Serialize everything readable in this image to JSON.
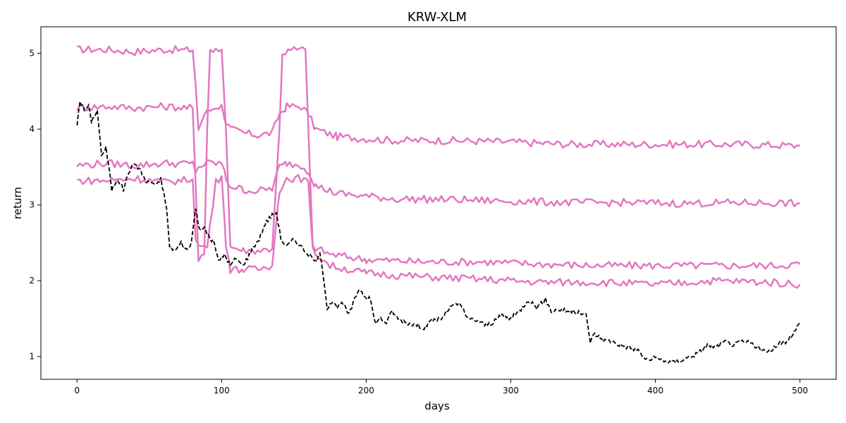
{
  "chart_data": {
    "type": "line",
    "title": "KRW-XLM",
    "xlabel": "days",
    "ylabel": "return",
    "xlim": [
      -25,
      525
    ],
    "ylim": [
      0.7,
      5.35
    ],
    "xticks": [
      0,
      100,
      200,
      300,
      400,
      500
    ],
    "yticks": [
      1,
      2,
      3,
      4,
      5
    ],
    "grid": false,
    "legend": "none",
    "colors": {
      "price": "#000000",
      "bands": "#e377c2"
    },
    "price_series": {
      "style": "dashed",
      "color": "#000000",
      "points": [
        [
          0,
          4.05
        ],
        [
          2,
          4.38
        ],
        [
          5,
          4.25
        ],
        [
          8,
          4.3
        ],
        [
          10,
          4.1
        ],
        [
          14,
          4.25
        ],
        [
          17,
          3.65
        ],
        [
          20,
          3.75
        ],
        [
          22,
          3.5
        ],
        [
          24,
          3.2
        ],
        [
          28,
          3.35
        ],
        [
          32,
          3.2
        ],
        [
          36,
          3.45
        ],
        [
          40,
          3.55
        ],
        [
          44,
          3.45
        ],
        [
          48,
          3.3
        ],
        [
          52,
          3.3
        ],
        [
          55,
          3.25
        ],
        [
          58,
          3.35
        ],
        [
          62,
          2.95
        ],
        [
          64,
          2.45
        ],
        [
          68,
          2.4
        ],
        [
          72,
          2.5
        ],
        [
          76,
          2.4
        ],
        [
          79,
          2.5
        ],
        [
          82,
          2.95
        ],
        [
          85,
          2.65
        ],
        [
          88,
          2.7
        ],
        [
          92,
          2.55
        ],
        [
          95,
          2.5
        ],
        [
          98,
          2.25
        ],
        [
          102,
          2.35
        ],
        [
          106,
          2.2
        ],
        [
          110,
          2.3
        ],
        [
          114,
          2.2
        ],
        [
          118,
          2.3
        ],
        [
          122,
          2.45
        ],
        [
          126,
          2.55
        ],
        [
          130,
          2.75
        ],
        [
          134,
          2.85
        ],
        [
          138,
          2.9
        ],
        [
          141,
          2.55
        ],
        [
          145,
          2.45
        ],
        [
          150,
          2.55
        ],
        [
          155,
          2.45
        ],
        [
          160,
          2.35
        ],
        [
          165,
          2.25
        ],
        [
          168,
          2.35
        ],
        [
          170,
          2.1
        ],
        [
          173,
          1.65
        ],
        [
          177,
          1.75
        ],
        [
          180,
          1.65
        ],
        [
          184,
          1.7
        ],
        [
          188,
          1.55
        ],
        [
          192,
          1.75
        ],
        [
          195,
          1.9
        ],
        [
          199,
          1.8
        ],
        [
          203,
          1.75
        ],
        [
          206,
          1.45
        ],
        [
          210,
          1.5
        ],
        [
          214,
          1.45
        ],
        [
          218,
          1.6
        ],
        [
          222,
          1.5
        ],
        [
          228,
          1.45
        ],
        [
          234,
          1.42
        ],
        [
          240,
          1.38
        ],
        [
          246,
          1.48
        ],
        [
          252,
          1.5
        ],
        [
          258,
          1.65
        ],
        [
          265,
          1.7
        ],
        [
          270,
          1.5
        ],
        [
          276,
          1.48
        ],
        [
          282,
          1.42
        ],
        [
          288,
          1.45
        ],
        [
          294,
          1.55
        ],
        [
          300,
          1.5
        ],
        [
          306,
          1.6
        ],
        [
          312,
          1.75
        ],
        [
          318,
          1.65
        ],
        [
          324,
          1.75
        ],
        [
          328,
          1.6
        ],
        [
          334,
          1.62
        ],
        [
          340,
          1.6
        ],
        [
          346,
          1.58
        ],
        [
          352,
          1.55
        ],
        [
          355,
          1.2
        ],
        [
          358,
          1.3
        ],
        [
          364,
          1.22
        ],
        [
          370,
          1.2
        ],
        [
          376,
          1.15
        ],
        [
          382,
          1.12
        ],
        [
          388,
          1.08
        ],
        [
          394,
          0.95
        ],
        [
          400,
          0.98
        ],
        [
          406,
          0.95
        ],
        [
          412,
          0.92
        ],
        [
          418,
          0.95
        ],
        [
          424,
          1.0
        ],
        [
          430,
          1.05
        ],
        [
          436,
          1.15
        ],
        [
          442,
          1.12
        ],
        [
          448,
          1.2
        ],
        [
          454,
          1.15
        ],
        [
          460,
          1.2
        ],
        [
          466,
          1.18
        ],
        [
          472,
          1.1
        ],
        [
          478,
          1.05
        ],
        [
          484,
          1.15
        ],
        [
          490,
          1.2
        ],
        [
          496,
          1.32
        ],
        [
          500,
          1.45
        ]
      ]
    },
    "band_series": [
      {
        "color": "#e377c2",
        "points": [
          [
            0,
            5.05
          ],
          [
            20,
            5.05
          ],
          [
            40,
            5.02
          ],
          [
            60,
            5.05
          ],
          [
            80,
            5.04
          ],
          [
            82,
            4.6
          ],
          [
            84,
            4.0
          ],
          [
            88,
            4.2
          ],
          [
            92,
            4.25
          ],
          [
            96,
            4.3
          ],
          [
            100,
            4.3
          ],
          [
            103,
            4.1
          ],
          [
            106,
            4.0
          ],
          [
            115,
            3.95
          ],
          [
            125,
            3.92
          ],
          [
            135,
            3.95
          ],
          [
            140,
            4.2
          ],
          [
            145,
            4.3
          ],
          [
            155,
            4.3
          ],
          [
            160,
            4.2
          ],
          [
            165,
            4.0
          ],
          [
            180,
            3.9
          ],
          [
            220,
            3.85
          ],
          [
            260,
            3.85
          ],
          [
            300,
            3.83
          ],
          [
            340,
            3.8
          ],
          [
            380,
            3.8
          ],
          [
            420,
            3.8
          ],
          [
            460,
            3.8
          ],
          [
            500,
            3.78
          ]
        ]
      },
      {
        "color": "#e377c2",
        "points": [
          [
            0,
            4.28
          ],
          [
            20,
            4.3
          ],
          [
            40,
            4.28
          ],
          [
            60,
            4.3
          ],
          [
            80,
            4.28
          ],
          [
            82,
            3.3
          ],
          [
            84,
            2.25
          ],
          [
            88,
            2.35
          ],
          [
            90,
            4.0
          ],
          [
            92,
            5.05
          ],
          [
            96,
            5.07
          ],
          [
            100,
            5.05
          ],
          [
            103,
            4.0
          ],
          [
            106,
            2.45
          ],
          [
            115,
            2.4
          ],
          [
            125,
            2.4
          ],
          [
            135,
            2.42
          ],
          [
            140,
            4.0
          ],
          [
            142,
            5.0
          ],
          [
            150,
            5.05
          ],
          [
            158,
            5.05
          ],
          [
            160,
            4.0
          ],
          [
            163,
            2.45
          ],
          [
            175,
            2.35
          ],
          [
            200,
            2.28
          ],
          [
            240,
            2.25
          ],
          [
            280,
            2.25
          ],
          [
            320,
            2.22
          ],
          [
            360,
            2.2
          ],
          [
            400,
            2.2
          ],
          [
            440,
            2.2
          ],
          [
            480,
            2.2
          ],
          [
            500,
            2.22
          ]
        ]
      },
      {
        "color": "#e377c2",
        "points": [
          [
            0,
            3.52
          ],
          [
            20,
            3.55
          ],
          [
            40,
            3.52
          ],
          [
            60,
            3.55
          ],
          [
            80,
            3.54
          ],
          [
            82,
            3.45
          ],
          [
            84,
            3.5
          ],
          [
            90,
            3.55
          ],
          [
            96,
            3.55
          ],
          [
            100,
            3.55
          ],
          [
            103,
            3.35
          ],
          [
            106,
            3.25
          ],
          [
            115,
            3.2
          ],
          [
            125,
            3.18
          ],
          [
            135,
            3.22
          ],
          [
            140,
            3.5
          ],
          [
            145,
            3.55
          ],
          [
            155,
            3.52
          ],
          [
            160,
            3.45
          ],
          [
            165,
            3.25
          ],
          [
            180,
            3.15
          ],
          [
            220,
            3.08
          ],
          [
            260,
            3.07
          ],
          [
            300,
            3.05
          ],
          [
            340,
            3.03
          ],
          [
            380,
            3.03
          ],
          [
            420,
            3.02
          ],
          [
            460,
            3.03
          ],
          [
            500,
            3.02
          ]
        ]
      },
      {
        "color": "#e377c2",
        "points": [
          [
            0,
            3.32
          ],
          [
            20,
            3.32
          ],
          [
            40,
            3.35
          ],
          [
            60,
            3.3
          ],
          [
            80,
            3.34
          ],
          [
            82,
            2.6
          ],
          [
            84,
            2.45
          ],
          [
            90,
            2.45
          ],
          [
            96,
            3.3
          ],
          [
            100,
            3.38
          ],
          [
            103,
            2.5
          ],
          [
            106,
            2.15
          ],
          [
            115,
            2.15
          ],
          [
            125,
            2.15
          ],
          [
            135,
            2.2
          ],
          [
            140,
            3.2
          ],
          [
            145,
            3.35
          ],
          [
            155,
            3.35
          ],
          [
            160,
            3.3
          ],
          [
            163,
            2.4
          ],
          [
            175,
            2.2
          ],
          [
            200,
            2.1
          ],
          [
            240,
            2.05
          ],
          [
            280,
            2.02
          ],
          [
            320,
            1.98
          ],
          [
            360,
            1.98
          ],
          [
            400,
            1.95
          ],
          [
            440,
            2.0
          ],
          [
            480,
            1.98
          ],
          [
            500,
            1.95
          ]
        ]
      }
    ]
  }
}
